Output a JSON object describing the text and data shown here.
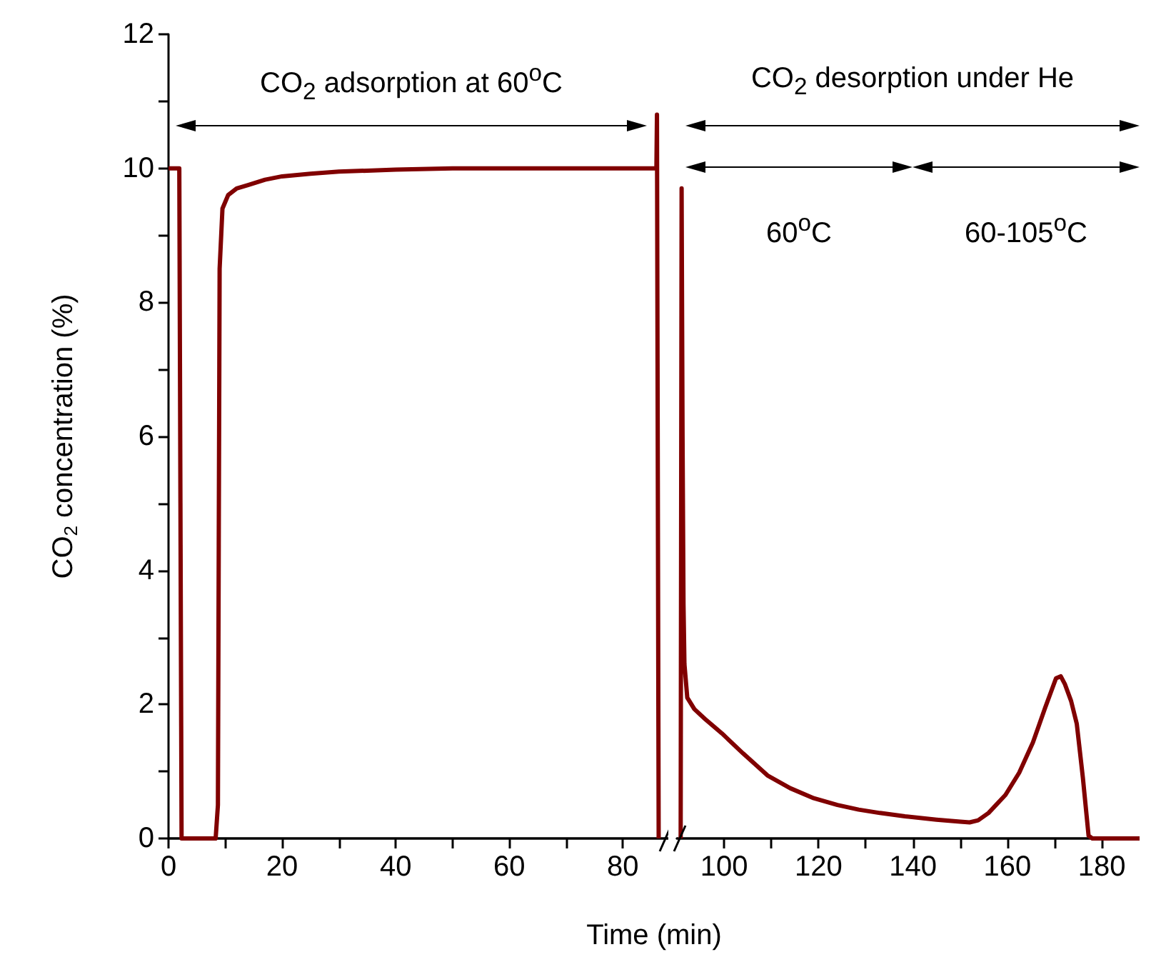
{
  "chart_data": [
    {
      "type": "line",
      "xlabel": "Time (min)",
      "ylabel": "CO$_{2}$ concentration (%)",
      "xlim": [
        0,
        88
      ],
      "xticks": [
        0,
        {
          "value": 10,
          "label": null
        },
        20,
        {
          "value": 30,
          "label": null
        },
        40,
        {
          "value": 50,
          "label": null
        },
        60,
        {
          "value": 70,
          "label": null
        },
        80
      ],
      "ylim": [
        0,
        12
      ],
      "yticks": [
        0,
        {
          "value": 1,
          "label": null
        },
        2,
        {
          "value": 3,
          "label": null
        },
        4,
        {
          "value": 5,
          "label": null
        },
        6,
        {
          "value": 7,
          "label": null
        },
        8,
        {
          "value": 9,
          "label": null
        },
        10,
        {
          "value": 11,
          "label": null
        },
        12
      ],
      "x": [
        0,
        1.9,
        2.1,
        2.3,
        8.3,
        8.7,
        9.0,
        9.5,
        10.5,
        12,
        14,
        17,
        20,
        25,
        30,
        40,
        50,
        60,
        70,
        80,
        85.9,
        86.0,
        86.3
      ],
      "series": [
        {
          "color": "#800000",
          "values": [
            10,
            10,
            5,
            0,
            0,
            0.5,
            8.5,
            9.4,
            9.6,
            9.7,
            9.75,
            9.83,
            9.88,
            9.92,
            9.95,
            9.98,
            10,
            10,
            10,
            10,
            10,
            10.8,
            0
          ]
        }
      ],
      "annotations": [
        "CO$_{2}$ adsorption at 60$^{o}$C"
      ]
    },
    {
      "type": "line",
      "tick_labels": "x",
      "xlim": [
        90,
        188
      ],
      "xticks": [
        100,
        {
          "value": 110,
          "label": null
        },
        120,
        {
          "value": 130,
          "label": null
        },
        140,
        {
          "value": 150,
          "label": null
        },
        160,
        {
          "value": 170,
          "label": null
        },
        180
      ],
      "ylim": [
        0,
        12
      ],
      "x": [
        90.8,
        91.0,
        91.2,
        91.4,
        91.6,
        92.2,
        93.7,
        96,
        99.5,
        104,
        109.2,
        114,
        119,
        124,
        128.5,
        133,
        138.3,
        145,
        150,
        152,
        153.8,
        156,
        159.6,
        162.5,
        165.4,
        168,
        170.3,
        171.3,
        172.2,
        173.5,
        174.7,
        176,
        177.2,
        178,
        188
      ],
      "series": [
        {
          "color": "#800000",
          "values": [
            0,
            9.7,
            6,
            3.5,
            2.6,
            2.1,
            1.93,
            1.78,
            1.57,
            1.27,
            0.94,
            0.75,
            0.6,
            0.5,
            0.43,
            0.38,
            0.33,
            0.28,
            0.25,
            0.24,
            0.27,
            0.38,
            0.65,
            0.98,
            1.43,
            1.95,
            2.39,
            2.42,
            2.3,
            2.05,
            1.71,
            0.9,
            0.04,
            0,
            0
          ]
        }
      ],
      "annotations": [
        "CO$_{2}$ desorption under He",
        "60$^{o}$C",
        "60-105$^{o}$C"
      ]
    }
  ]
}
